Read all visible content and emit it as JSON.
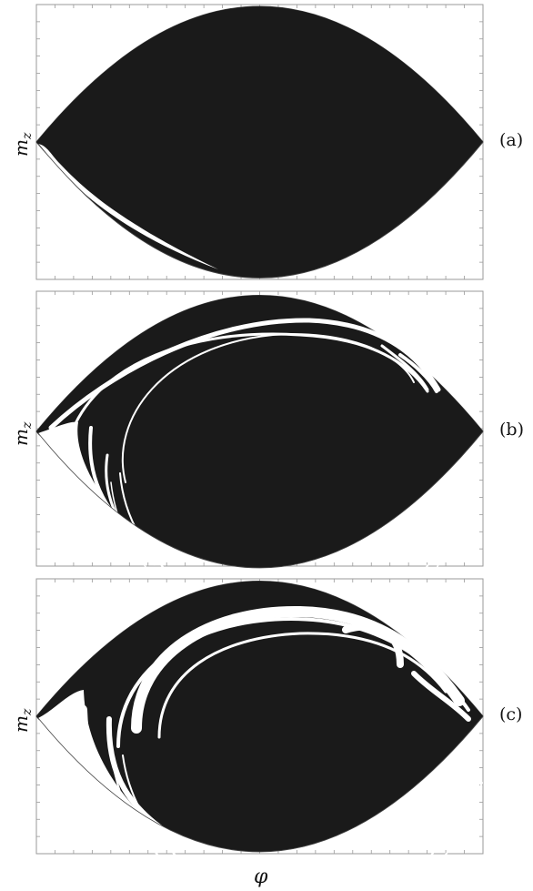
{
  "figure": {
    "x_axis_label": "φ",
    "panels": [
      {
        "label": "(a)",
        "y_label_base": "m",
        "y_label_sub": "z"
      },
      {
        "label": "(b)",
        "y_label_base": "m",
        "y_label_sub": "z"
      },
      {
        "label": "(c)",
        "y_label_base": "m",
        "y_label_sub": "z"
      }
    ],
    "colors": {
      "fill": "#1a1a1a",
      "frame": "#9a9a9a",
      "boundary": "#444444",
      "background": "#ffffff"
    }
  }
}
